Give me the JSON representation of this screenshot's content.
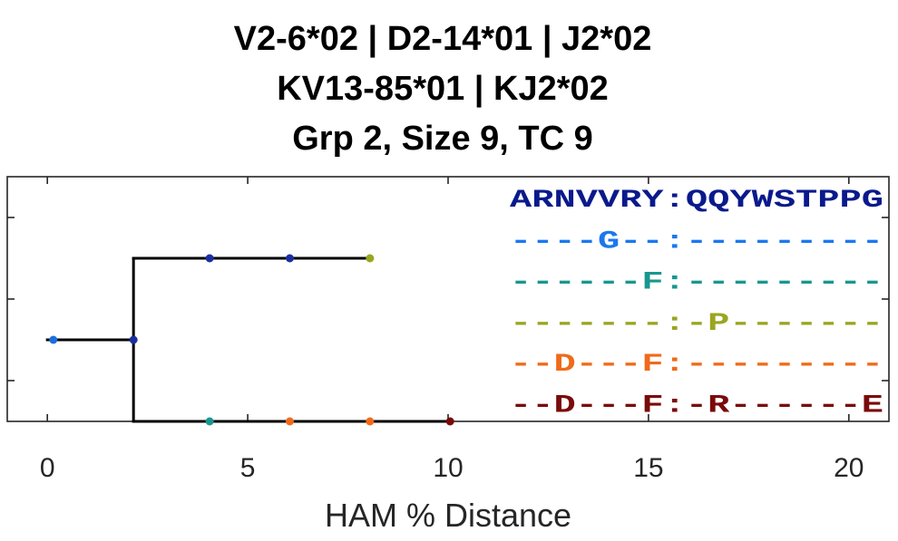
{
  "chart_data": {
    "type": "tree",
    "title": [
      "V2-6*02 | D2-14*01 | J2*02",
      "KV13-85*01 | KJ2*02",
      "Grp 2, Size 9, TC 9"
    ],
    "xlabel": "HAM % Distance",
    "xlim": [
      -1,
      21
    ],
    "xticks": [
      0,
      5,
      10,
      15,
      20
    ],
    "ylim": [
      0.5,
      3.5
    ],
    "yticks": [
      1,
      2,
      3
    ],
    "branches": [
      {
        "x": [
          0,
          2.15
        ],
        "y": [
          2.5,
          2.5
        ]
      },
      {
        "x": [
          2.15,
          2.15
        ],
        "y": [
          1.5,
          3.5
        ]
      },
      {
        "x": [
          2.15,
          8
        ],
        "y": [
          1.5,
          1.5
        ]
      },
      {
        "x": [
          2.15,
          10
        ],
        "y": [
          3.5,
          3.5
        ]
      }
    ],
    "nodes": [
      {
        "x": 0.15,
        "y": 2.5,
        "color": "#1a6fe0"
      },
      {
        "x": 2.15,
        "y": 2.5,
        "color": "#1a2f9e"
      },
      {
        "x": 4.05,
        "y": 1.5,
        "color": "#1a2f9e"
      },
      {
        "x": 6.05,
        "y": 1.5,
        "color": "#1a2f9e"
      },
      {
        "x": 8.05,
        "y": 1.5,
        "color": "#9aa520"
      },
      {
        "x": 4.05,
        "y": 3.5,
        "color": "#18978f"
      },
      {
        "x": 6.05,
        "y": 3.5,
        "color": "#f06a1a"
      },
      {
        "x": 8.05,
        "y": 3.5,
        "color": "#f06a1a"
      },
      {
        "x": 10.05,
        "y": 3.5,
        "color": "#7a0a0a"
      }
    ],
    "sequences": [
      {
        "text": "ARNVVRY:QQYWSTPPG",
        "color": "#0a1a8c"
      },
      {
        "text": "----G--:---------",
        "color": "#1a78ef"
      },
      {
        "text": "------F:---------",
        "color": "#18978f"
      },
      {
        "text": "-------:-P-------",
        "color": "#9aa520"
      },
      {
        "text": "--D---F:---------",
        "color": "#f06a1a"
      },
      {
        "text": "--D---F:-R------E",
        "color": "#7a0a0a"
      }
    ]
  }
}
